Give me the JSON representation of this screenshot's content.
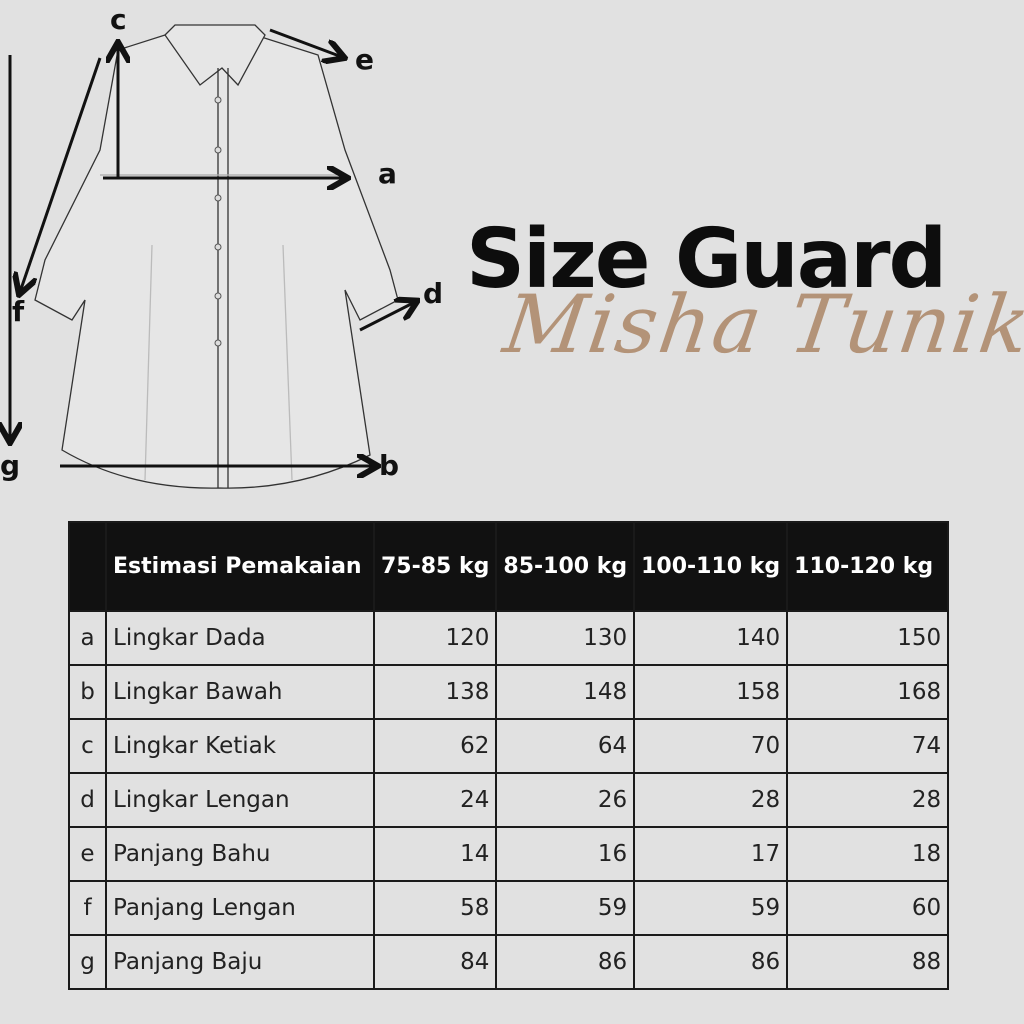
{
  "title": "Size Guard",
  "subtitle": "Misha Tunik",
  "colors": {
    "background": "#e1e1e1",
    "header": "#111111",
    "subtitle": "#b39378"
  },
  "diagram_labels": {
    "a": "a",
    "b": "b",
    "c": "c",
    "d": "d",
    "e": "e",
    "f": "f",
    "g": "g"
  },
  "table": {
    "headers": [
      "",
      "Estimasi Pemakaian",
      "75-85 kg",
      "85-100 kg",
      "100-110 kg",
      "110-120 kg"
    ],
    "rows": [
      {
        "key": "a",
        "name": "Lingkar Dada",
        "values": [
          "120",
          "130",
          "140",
          "150"
        ]
      },
      {
        "key": "b",
        "name": "Lingkar Bawah",
        "values": [
          "138",
          "148",
          "158",
          "168"
        ]
      },
      {
        "key": "c",
        "name": "Lingkar Ketiak",
        "values": [
          "62",
          "64",
          "70",
          "74"
        ]
      },
      {
        "key": "d",
        "name": "Lingkar Lengan",
        "values": [
          "24",
          "26",
          "28",
          "28"
        ]
      },
      {
        "key": "e",
        "name": "Panjang Bahu",
        "values": [
          "14",
          "16",
          "17",
          "18"
        ]
      },
      {
        "key": "f",
        "name": "Panjang Lengan",
        "values": [
          "58",
          "59",
          "59",
          "60"
        ]
      },
      {
        "key": "g",
        "name": "Panjang Baju",
        "values": [
          "84",
          "86",
          "86",
          "88"
        ]
      }
    ]
  }
}
